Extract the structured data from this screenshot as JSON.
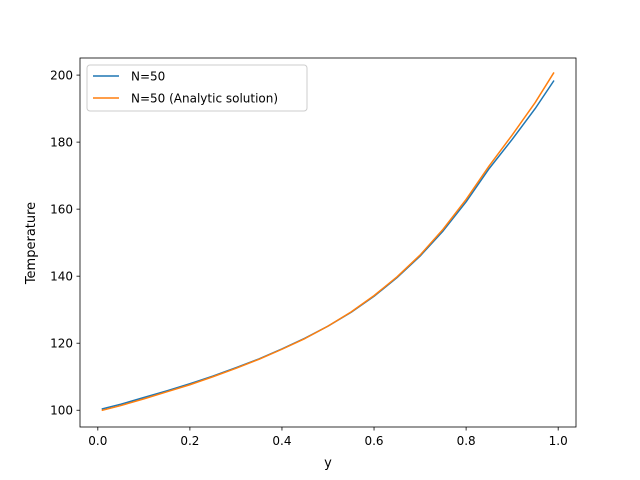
{
  "chart_data": {
    "type": "line",
    "xlabel": "y",
    "ylabel": "Temperature",
    "xlim": [
      -0.0387,
      1.0387
    ],
    "ylim": [
      95.0,
      205.1
    ],
    "xticks": [
      0.0,
      0.2,
      0.4,
      0.6,
      0.8,
      1.0
    ],
    "xtick_labels": [
      "0.0",
      "0.2",
      "0.4",
      "0.6",
      "0.8",
      "1.0"
    ],
    "yticks": [
      100,
      120,
      140,
      160,
      180,
      200
    ],
    "ytick_labels": [
      "100",
      "120",
      "140",
      "160",
      "180",
      "200"
    ],
    "grid": false,
    "legend_position": "top-left",
    "series": [
      {
        "name": "N=50",
        "color": "#1f77b4",
        "x": [
          0.01,
          0.05,
          0.1,
          0.15,
          0.2,
          0.25,
          0.3,
          0.35,
          0.4,
          0.45,
          0.5,
          0.55,
          0.6,
          0.65,
          0.7,
          0.75,
          0.8,
          0.85,
          0.9,
          0.95,
          0.99
        ],
        "values": [
          100.4,
          101.8,
          103.8,
          105.8,
          107.9,
          110.2,
          112.7,
          115.3,
          118.3,
          121.5,
          125.1,
          129.2,
          134.0,
          139.6,
          146.0,
          153.5,
          162.2,
          172.1,
          180.8,
          190.0,
          198.2
        ]
      },
      {
        "name": "N=50 (Analytic solution)",
        "color": "#ff7f0e",
        "x": [
          0.01,
          0.05,
          0.1,
          0.15,
          0.2,
          0.25,
          0.3,
          0.35,
          0.4,
          0.45,
          0.5,
          0.55,
          0.6,
          0.65,
          0.7,
          0.75,
          0.8,
          0.85,
          0.9,
          0.95,
          0.99
        ],
        "values": [
          100.0,
          101.4,
          103.4,
          105.5,
          107.6,
          110.0,
          112.5,
          115.2,
          118.2,
          121.4,
          125.1,
          129.3,
          134.2,
          139.8,
          146.3,
          154.0,
          162.9,
          172.9,
          182.1,
          191.8,
          200.6
        ]
      }
    ]
  }
}
